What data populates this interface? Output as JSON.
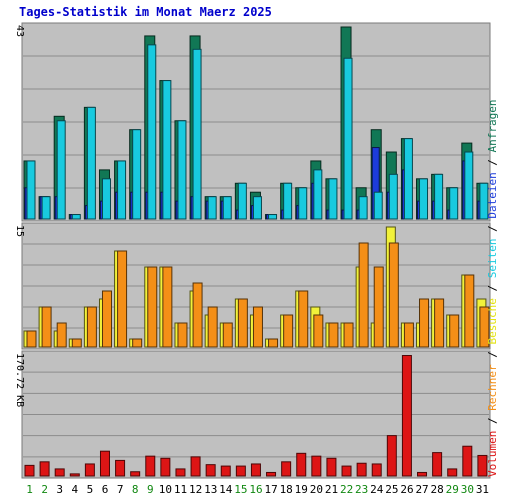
{
  "chart_data": {
    "type": "bar",
    "title": "Tages-Statistik im Monat Maerz 2025",
    "categories": [
      "1",
      "2",
      "3",
      "4",
      "5",
      "6",
      "7",
      "8",
      "9",
      "10",
      "11",
      "12",
      "13",
      "14",
      "15",
      "16",
      "17",
      "18",
      "19",
      "20",
      "21",
      "22",
      "23",
      "24",
      "25",
      "26",
      "27",
      "28",
      "29",
      "30",
      "31"
    ],
    "weekend_days": [
      "1",
      "2",
      "8",
      "9",
      "15",
      "16",
      "22",
      "23",
      "29",
      "30"
    ],
    "panels": [
      {
        "id": "requests",
        "max_label": "43",
        "ylim": [
          0,
          43
        ],
        "series": [
          {
            "name": "Anfragen",
            "color": "#117755",
            "values": [
              13,
              5,
              23,
              1,
              25,
              11,
              13,
              20,
              41,
              31,
              22,
              41,
              5,
              5,
              8,
              6,
              1,
              8,
              7,
              13,
              9,
              43,
              7,
              20,
              15,
              18,
              9,
              10,
              7,
              17,
              8
            ]
          },
          {
            "name": "Dateien",
            "color": "#1c3cdb",
            "values": [
              7,
              5,
              5,
              1,
              3,
              4,
              6,
              6,
              6,
              6,
              4,
              5,
              4,
              4,
              2,
              3,
              1,
              2,
              3,
              8,
              2,
              2,
              2,
              16,
              6,
              11,
              4,
              4,
              2,
              13,
              4
            ]
          },
          {
            "name": "Seiten",
            "color": "#18cadf",
            "values": [
              13,
              5,
              22,
              1,
              25,
              9,
              13,
              20,
              39,
              31,
              22,
              38,
              5,
              5,
              8,
              5,
              1,
              8,
              7,
              11,
              9,
              36,
              5,
              6,
              10,
              18,
              9,
              10,
              7,
              15,
              8
            ]
          }
        ]
      },
      {
        "id": "visits",
        "max_label": "15",
        "ylim": [
          0,
          15
        ],
        "series": [
          {
            "name": "Besuche",
            "color": "#f1f13a",
            "values": [
              2,
              5,
              2,
              1,
              5,
              6,
              12,
              1,
              10,
              10,
              3,
              7,
              4,
              3,
              6,
              4,
              1,
              4,
              7,
              5,
              3,
              3,
              10,
              3,
              15,
              3,
              3,
              6,
              4,
              9,
              6
            ]
          },
          {
            "name": "Rechner",
            "color": "#f48f17",
            "values": [
              2,
              5,
              3,
              1,
              5,
              7,
              12,
              1,
              10,
              10,
              3,
              8,
              5,
              3,
              6,
              5,
              1,
              4,
              7,
              4,
              3,
              3,
              13,
              10,
              13,
              3,
              6,
              6,
              4,
              9,
              5
            ]
          }
        ]
      },
      {
        "id": "volume",
        "max_label": "170.72 KB",
        "ylim": [
          0,
          170.72
        ],
        "series": [
          {
            "name": "Volumen",
            "color": "#dd1515",
            "values": [
              15,
              20,
              10,
              3,
              17,
              35,
              22,
              6,
              28,
              25,
              10,
              27,
              16,
              14,
              14,
              17,
              5,
              20,
              32,
              28,
              25,
              14,
              18,
              17,
              57,
              170,
              5,
              33,
              10,
              42,
              29
            ]
          }
        ]
      }
    ],
    "legend": {
      "sep": "/",
      "items": [
        {
          "text": "Volumen",
          "color": "#dd1515"
        },
        {
          "text": "Rechner",
          "color": "#f48f17"
        },
        {
          "text": "Besuche",
          "color": "#e3e312"
        },
        {
          "text": "Seiten",
          "color": "#18cadf"
        },
        {
          "text": "Dateien",
          "color": "#1c3cdb"
        },
        {
          "text": "Anfragen",
          "color": "#117755"
        }
      ]
    },
    "colors": {
      "plot_bg": "#c0c0c0",
      "grid": "#8c8c8c",
      "frame": "#7a7a7a",
      "weekday_label": "#000000",
      "weekend_label": "#118811"
    },
    "grid": true
  }
}
